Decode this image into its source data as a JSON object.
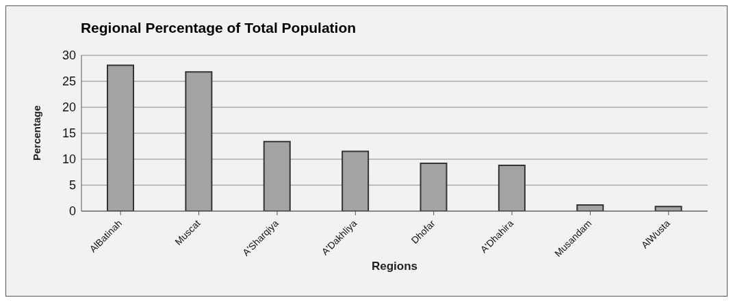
{
  "chart_data": {
    "type": "bar",
    "title": "Regional Percentage of Total Population",
    "xlabel": "Regions",
    "ylabel": "Percentage",
    "categories": [
      "AlBatinah",
      "Muscat",
      "A'Sharqiya",
      "A'Dakhliya",
      "Dhofar",
      "A'Dhahira",
      "Musandam",
      "AlWusta"
    ],
    "values": [
      28.1,
      26.8,
      13.4,
      11.5,
      9.2,
      8.8,
      1.2,
      0.9
    ],
    "color": "#a3a3a3",
    "ylim": [
      0,
      30
    ],
    "yticks": [
      0,
      5,
      10,
      15,
      20,
      25,
      30
    ],
    "grid": "y",
    "legend": false
  }
}
